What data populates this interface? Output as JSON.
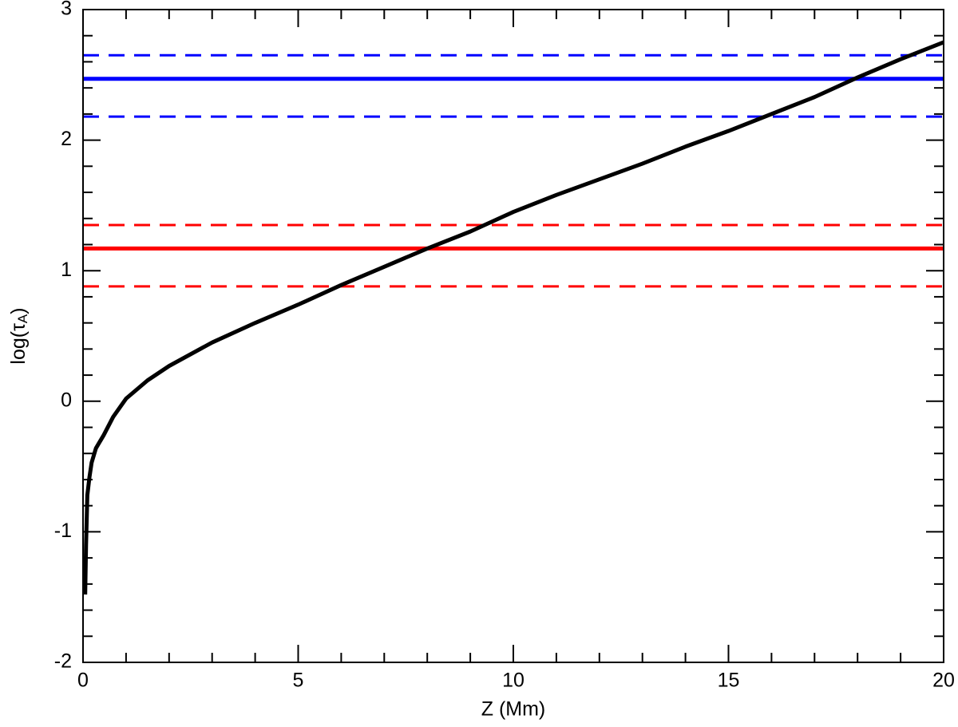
{
  "chart_data": {
    "type": "line",
    "x_label": "Z (Mm)",
    "y_label": [
      "log(τ",
      "A",
      ")"
    ],
    "xlim": [
      0,
      20
    ],
    "xticks": [
      0,
      5,
      10,
      15,
      20
    ],
    "ylim": [
      -2,
      3
    ],
    "yticks": [
      -2,
      -1,
      0,
      1,
      2,
      3
    ],
    "series": [
      {
        "color": "#000000",
        "x": [
          0.05,
          0.07,
          0.1,
          0.15,
          0.2,
          0.3,
          0.48,
          0.7,
          1,
          1.5,
          2,
          3,
          4,
          5,
          6,
          7,
          8,
          9,
          10,
          11,
          12,
          13,
          14,
          15,
          16,
          17,
          18,
          19,
          20
        ],
        "values": [
          -1.48,
          -1.1,
          -0.72,
          -0.58,
          -0.47,
          -0.36,
          -0.26,
          -0.12,
          0.02,
          0.16,
          0.27,
          0.45,
          0.6,
          0.74,
          0.89,
          1.03,
          1.17,
          1.3,
          1.45,
          1.58,
          1.7,
          1.82,
          1.95,
          2.07,
          2.2,
          2.33,
          2.48,
          2.62,
          2.75
        ]
      }
    ],
    "hlines": [
      {
        "color": "#0000ff",
        "dashed": true,
        "value": 2.65
      },
      {
        "color": "#0000ff",
        "dashed": false,
        "value": 2.47
      },
      {
        "color": "#0000ff",
        "dashed": true,
        "value": 2.18
      },
      {
        "color": "#ff0000",
        "dashed": true,
        "value": 1.35
      },
      {
        "color": "#ff0000",
        "dashed": false,
        "value": 1.17
      },
      {
        "color": "#ff0000",
        "dashed": true,
        "value": 0.88
      }
    ]
  }
}
